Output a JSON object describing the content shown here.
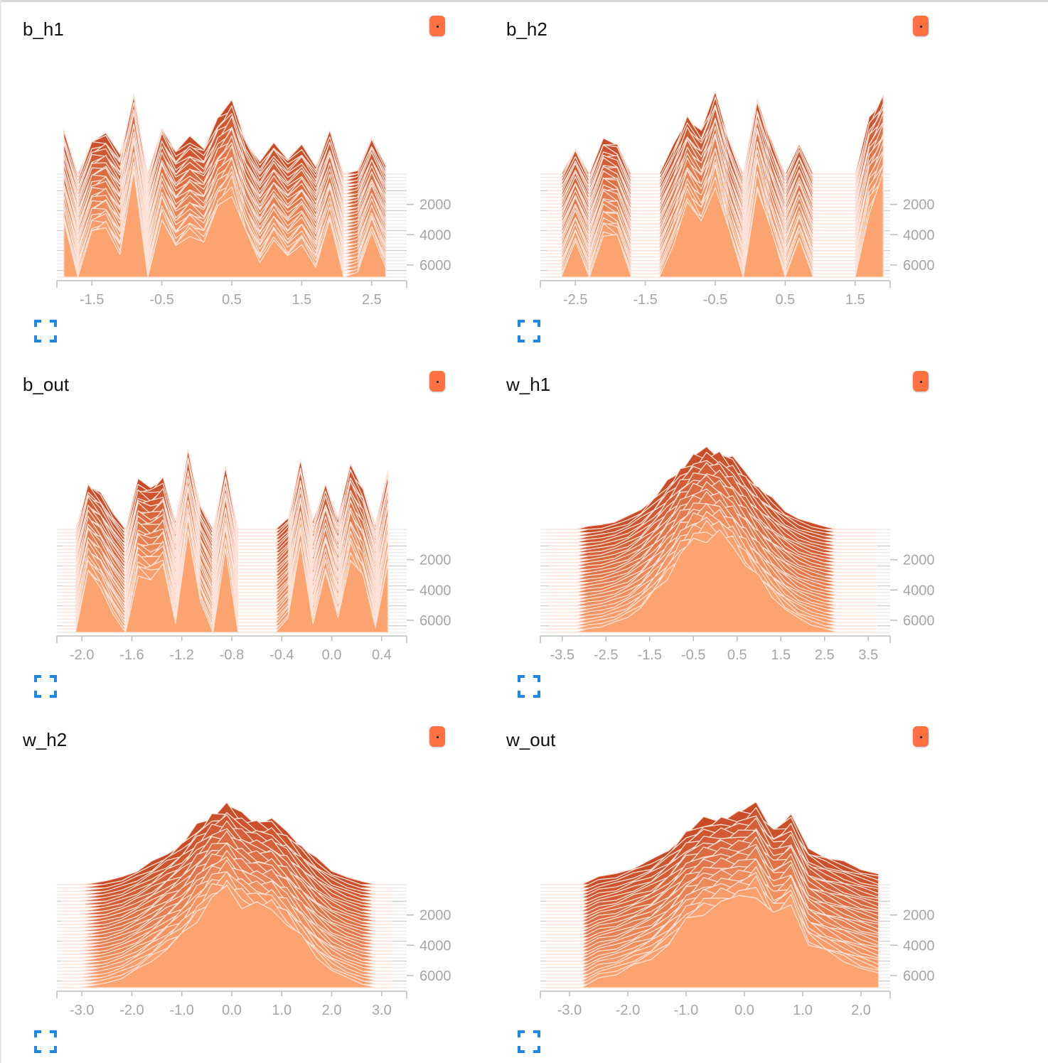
{
  "colors": {
    "old": "#c84a27",
    "new": "#fca46f",
    "outline": "#fde3d9",
    "axis": "#bdbdbd",
    "button": "#ff7043",
    "expand_icon": "#1e88e5"
  },
  "icons": {
    "menu": "more-dots-icon",
    "expand": "fullscreen-icon"
  },
  "chart_data": [
    {
      "name": "b_h1",
      "type": "histogram-offset",
      "title": "b_h1",
      "xlim": [
        -2.0,
        3.0
      ],
      "xticks": [
        -1.5,
        -0.5,
        0.5,
        1.5,
        2.5
      ],
      "yticks": [
        2000,
        4000,
        6000
      ],
      "steps": [
        0,
        6800
      ],
      "x": [
        -1.9,
        -1.7,
        -1.5,
        -1.3,
        -1.1,
        -0.9,
        -0.7,
        -0.5,
        -0.3,
        -0.1,
        0.1,
        0.3,
        0.5,
        0.7,
        0.9,
        1.1,
        1.3,
        1.5,
        1.7,
        1.9,
        2.1,
        2.3,
        2.5,
        2.7
      ],
      "values": [
        0.55,
        0.0,
        0.45,
        0.5,
        0.25,
        1.0,
        0.0,
        0.6,
        0.3,
        0.45,
        0.35,
        0.7,
        0.9,
        0.45,
        0.15,
        0.4,
        0.2,
        0.35,
        0.1,
        0.55,
        0.0,
        0.05,
        0.45,
        0.1
      ]
    },
    {
      "name": "b_h2",
      "type": "histogram-offset",
      "title": "b_h2",
      "xlim": [
        -3.0,
        2.0
      ],
      "xticks": [
        -2.5,
        -1.5,
        -0.5,
        0.5,
        1.5
      ],
      "yticks": [
        2000,
        4000,
        6000
      ],
      "steps": [
        0,
        6800
      ],
      "x": [
        -2.9,
        -2.7,
        -2.5,
        -2.3,
        -2.1,
        -1.9,
        -1.7,
        -1.5,
        -1.3,
        -1.1,
        -0.9,
        -0.7,
        -0.5,
        -0.3,
        -0.1,
        0.1,
        0.3,
        0.5,
        0.7,
        0.9,
        1.1,
        1.3,
        1.5,
        1.7,
        1.9
      ],
      "values": [
        0.0,
        0.0,
        0.35,
        0.0,
        0.45,
        0.4,
        0.0,
        0.0,
        0.0,
        0.35,
        0.75,
        0.55,
        1.0,
        0.45,
        0.0,
        0.95,
        0.45,
        0.0,
        0.4,
        0.0,
        0.0,
        0.0,
        0.0,
        0.7,
        1.0
      ]
    },
    {
      "name": "b_out",
      "type": "histogram-offset",
      "title": "b_out",
      "xlim": [
        -2.2,
        0.6
      ],
      "xticks": [
        -2.0,
        -1.6,
        -1.2,
        -0.8,
        -0.4,
        0.0,
        0.4
      ],
      "yticks": [
        2000,
        4000,
        6000
      ],
      "steps": [
        0,
        6800
      ],
      "x": [
        -2.15,
        -2.05,
        -1.95,
        -1.85,
        -1.75,
        -1.65,
        -1.55,
        -1.45,
        -1.35,
        -1.25,
        -1.15,
        -1.05,
        -0.95,
        -0.85,
        -0.75,
        -0.65,
        -0.55,
        -0.45,
        -0.35,
        -0.25,
        -0.15,
        -0.05,
        0.05,
        0.15,
        0.25,
        0.35,
        0.45
      ],
      "values": [
        0.0,
        0.0,
        0.6,
        0.45,
        0.2,
        0.0,
        0.6,
        0.55,
        0.65,
        0.1,
        1.0,
        0.3,
        0.0,
        0.8,
        0.0,
        0.0,
        0.0,
        0.0,
        0.15,
        0.85,
        0.1,
        0.6,
        0.15,
        0.8,
        0.55,
        0.05,
        0.75
      ]
    },
    {
      "name": "w_h1",
      "type": "histogram-offset",
      "title": "w_h1",
      "xlim": [
        -4.0,
        4.0
      ],
      "xticks": [
        -3.5,
        -2.5,
        -1.5,
        -0.5,
        0.5,
        1.5,
        2.5,
        3.5
      ],
      "yticks": [
        2000,
        4000,
        6000
      ],
      "steps": [
        0,
        6800
      ],
      "x": [
        -3.8,
        -3.5,
        -3.2,
        -2.9,
        -2.6,
        -2.3,
        -2.0,
        -1.7,
        -1.4,
        -1.1,
        -0.8,
        -0.5,
        -0.2,
        0.1,
        0.4,
        0.7,
        1.0,
        1.3,
        1.6,
        1.9,
        2.2,
        2.5,
        2.8,
        3.1,
        3.4,
        3.7
      ],
      "values": [
        0.0,
        0.0,
        0.0,
        0.04,
        0.06,
        0.1,
        0.16,
        0.26,
        0.4,
        0.58,
        0.78,
        0.92,
        1.0,
        0.98,
        0.88,
        0.72,
        0.54,
        0.38,
        0.24,
        0.14,
        0.08,
        0.04,
        0.0,
        0.0,
        0.0,
        0.0
      ]
    },
    {
      "name": "w_h2",
      "type": "histogram-offset",
      "title": "w_h2",
      "xlim": [
        -3.5,
        3.5
      ],
      "xticks": [
        -3.0,
        -2.0,
        -1.0,
        0.0,
        1.0,
        2.0,
        3.0
      ],
      "yticks": [
        2000,
        4000,
        6000
      ],
      "steps": [
        0,
        6800
      ],
      "x": [
        -3.4,
        -3.1,
        -2.8,
        -2.5,
        -2.2,
        -1.9,
        -1.6,
        -1.3,
        -1.0,
        -0.7,
        -0.4,
        -0.1,
        0.2,
        0.5,
        0.8,
        1.1,
        1.4,
        1.7,
        2.0,
        2.3,
        2.6,
        2.9,
        3.2
      ],
      "values": [
        0.0,
        0.0,
        0.02,
        0.05,
        0.1,
        0.18,
        0.28,
        0.4,
        0.52,
        0.72,
        0.9,
        1.0,
        0.88,
        0.82,
        0.8,
        0.68,
        0.5,
        0.32,
        0.18,
        0.1,
        0.04,
        0.0,
        0.0
      ]
    },
    {
      "name": "w_out",
      "type": "histogram-offset",
      "title": "w_out",
      "xlim": [
        -3.5,
        2.5
      ],
      "xticks": [
        -3.0,
        -2.0,
        -1.0,
        0.0,
        1.0,
        2.0
      ],
      "yticks": [
        2000,
        4000,
        6000
      ],
      "steps": [
        0,
        6800
      ],
      "x": [
        -3.4,
        -3.1,
        -2.8,
        -2.5,
        -2.2,
        -1.9,
        -1.6,
        -1.3,
        -1.0,
        -0.7,
        -0.4,
        -0.1,
        0.2,
        0.5,
        0.8,
        1.1,
        1.4,
        1.7,
        2.0,
        2.3
      ],
      "values": [
        0.0,
        0.0,
        0.0,
        0.1,
        0.14,
        0.22,
        0.3,
        0.45,
        0.66,
        0.8,
        0.86,
        0.9,
        1.0,
        0.72,
        0.85,
        0.46,
        0.36,
        0.28,
        0.2,
        0.14
      ]
    }
  ]
}
